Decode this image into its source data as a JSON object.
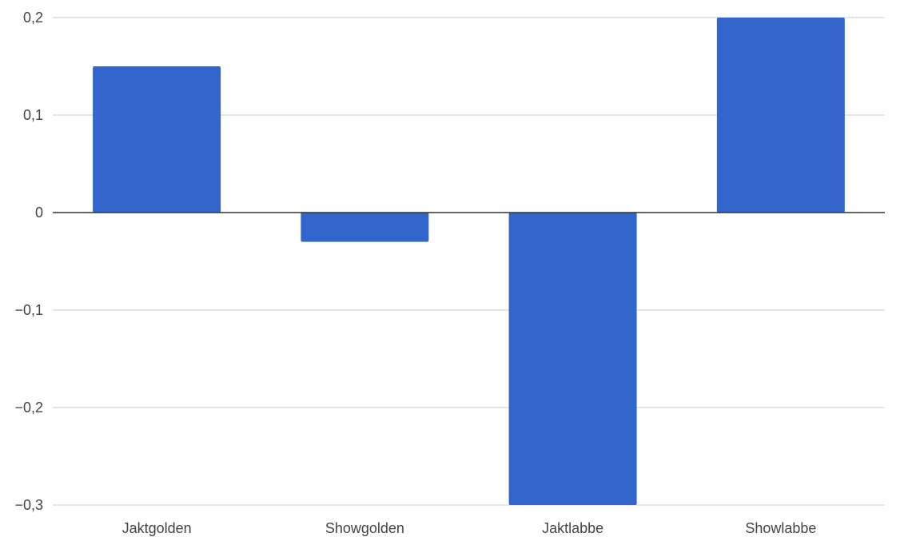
{
  "chart_data": {
    "type": "bar",
    "title": "",
    "xlabel": "",
    "ylabel": "",
    "categories": [
      "Jaktgolden",
      "Showgolden",
      "Jaktlabbe",
      "Showlabbe"
    ],
    "values": [
      0.15,
      -0.03,
      -0.3,
      0.2
    ],
    "ylim": [
      -0.3,
      0.2
    ],
    "yticks": [
      0.2,
      0.1,
      0,
      -0.1,
      -0.2,
      -0.3
    ],
    "ytick_labels": [
      "0,2",
      "0,1",
      "0",
      "−0,1",
      "−0,2",
      "−0,3"
    ],
    "bar_color": "#3366cc",
    "grid": true,
    "legend": "none"
  }
}
